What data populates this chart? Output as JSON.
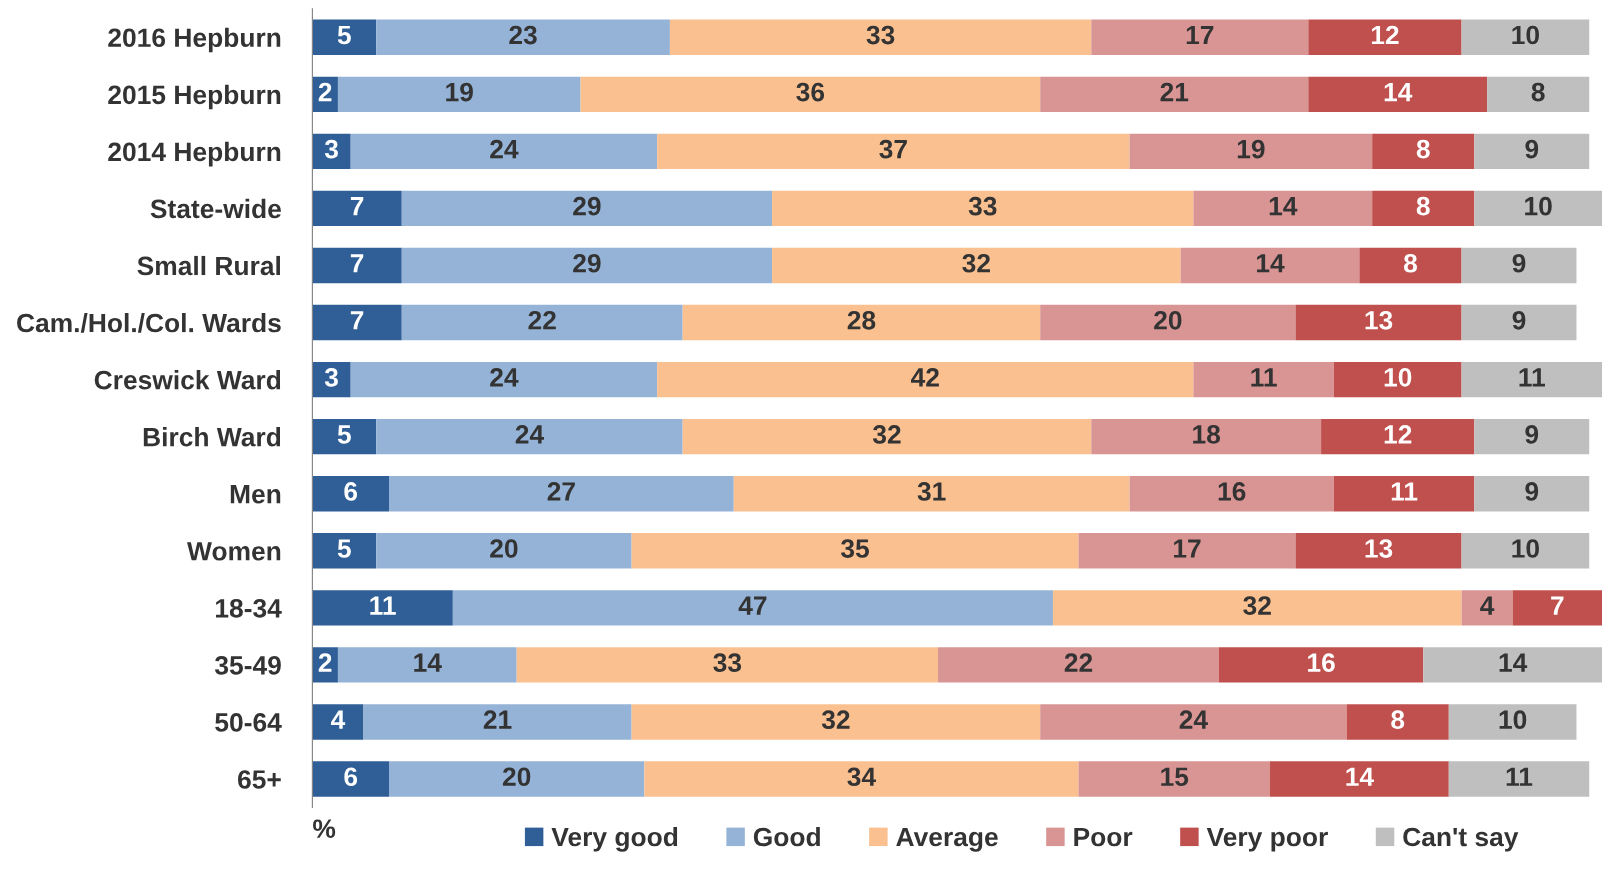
{
  "chart_data": {
    "type": "bar",
    "orientation": "horizontal",
    "stacked": true,
    "data_labels": true,
    "xlabel": "%",
    "legend": "bottom",
    "grid": false,
    "categories": [
      "2016 Hepburn",
      "2015 Hepburn",
      "2014 Hepburn",
      "State-wide",
      "Small Rural",
      "Cam./Hol./Col. Wards",
      "Creswick Ward",
      "Birch Ward",
      "Men",
      "Women",
      "18-34",
      "35-49",
      "50-64",
      "65+"
    ],
    "series": [
      {
        "name": "Very good",
        "color": "#2f5f96",
        "values": [
          5,
          2,
          3,
          7,
          7,
          7,
          3,
          5,
          6,
          5,
          11,
          2,
          4,
          6
        ]
      },
      {
        "name": "Good",
        "color": "#95b3d7",
        "values": [
          23,
          19,
          24,
          29,
          29,
          22,
          24,
          24,
          27,
          20,
          47,
          14,
          21,
          20
        ]
      },
      {
        "name": "Average",
        "color": "#fac090",
        "values": [
          33,
          36,
          37,
          33,
          32,
          28,
          42,
          32,
          31,
          35,
          32,
          33,
          32,
          34
        ]
      },
      {
        "name": "Poor",
        "color": "#d99594",
        "values": [
          17,
          21,
          19,
          14,
          14,
          20,
          11,
          18,
          16,
          17,
          4,
          22,
          24,
          15
        ]
      },
      {
        "name": "Very poor",
        "color": "#c0504d",
        "values": [
          12,
          14,
          8,
          8,
          8,
          13,
          10,
          12,
          11,
          13,
          7,
          16,
          8,
          14
        ]
      },
      {
        "name": "Can't say",
        "color": "#bfbfbf",
        "values": [
          10,
          8,
          9,
          10,
          9,
          9,
          11,
          9,
          9,
          10,
          null,
          14,
          10,
          11
        ]
      }
    ]
  }
}
